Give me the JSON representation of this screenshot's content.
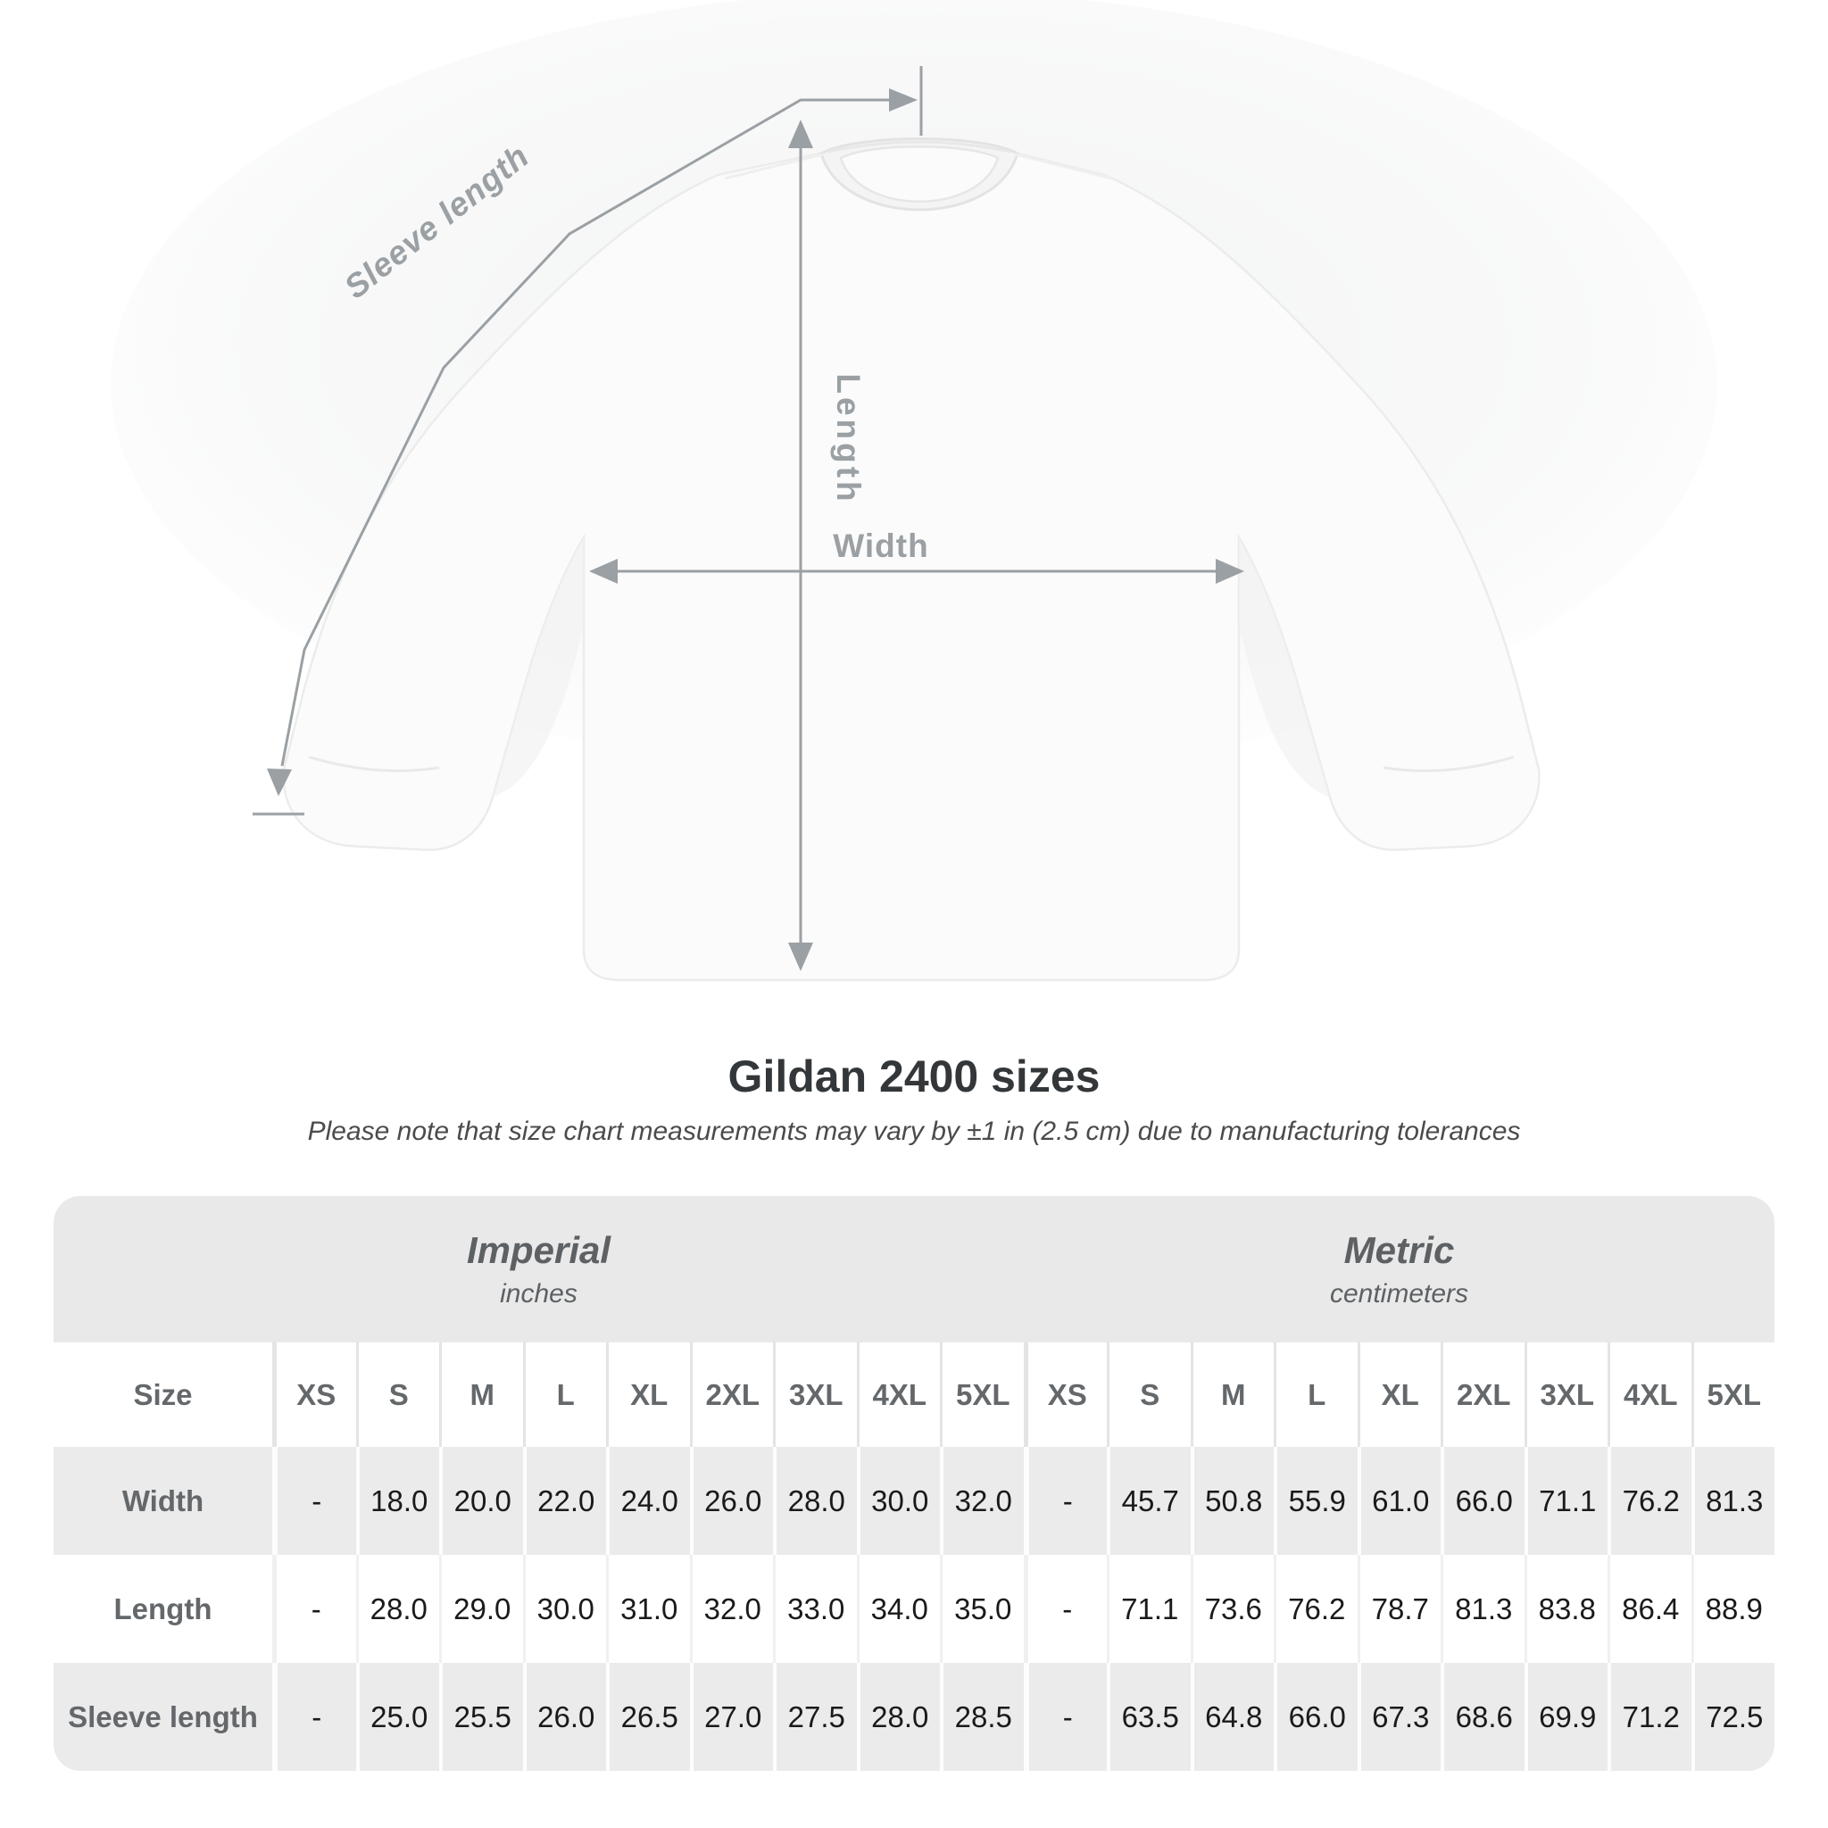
{
  "diagram": {
    "labels": {
      "sleeve_length": "Sleeve length",
      "length": "Length",
      "width": "Width"
    }
  },
  "title": "Gildan 2400 sizes",
  "subtitle": "Please note that size chart measurements may vary by ±1 in (2.5 cm) due to manufacturing tolerances",
  "table": {
    "size_label": "Size",
    "unit_groups": [
      {
        "name": "Imperial",
        "unit": "inches"
      },
      {
        "name": "Metric",
        "unit": "centimeters"
      }
    ],
    "sizes": [
      "XS",
      "S",
      "M",
      "L",
      "XL",
      "2XL",
      "3XL",
      "4XL",
      "5XL"
    ],
    "rows": [
      {
        "label": "Width",
        "imperial": [
          "-",
          "18.0",
          "20.0",
          "22.0",
          "24.0",
          "26.0",
          "28.0",
          "30.0",
          "32.0"
        ],
        "metric": [
          "-",
          "45.7",
          "50.8",
          "55.9",
          "61.0",
          "66.0",
          "71.1",
          "76.2",
          "81.3"
        ]
      },
      {
        "label": "Length",
        "imperial": [
          "-",
          "28.0",
          "29.0",
          "30.0",
          "31.0",
          "32.0",
          "33.0",
          "34.0",
          "35.0"
        ],
        "metric": [
          "-",
          "71.1",
          "73.6",
          "76.2",
          "78.7",
          "81.3",
          "83.8",
          "86.4",
          "88.9"
        ]
      },
      {
        "label": "Sleeve length",
        "imperial": [
          "-",
          "25.0",
          "25.5",
          "26.0",
          "26.5",
          "27.0",
          "27.5",
          "28.0",
          "28.5"
        ],
        "metric": [
          "-",
          "63.5",
          "64.8",
          "66.0",
          "67.3",
          "68.6",
          "69.9",
          "71.2",
          "72.5"
        ]
      }
    ]
  },
  "colors": {
    "table_band": "#e9e9e9",
    "row_alt": "#ebebeb",
    "header_text": "#64686b",
    "value_text": "#1a1a1a",
    "annotation": "#9aa0a4",
    "title_text": "#33373a",
    "shirt_fill": "#fbfbfb"
  }
}
